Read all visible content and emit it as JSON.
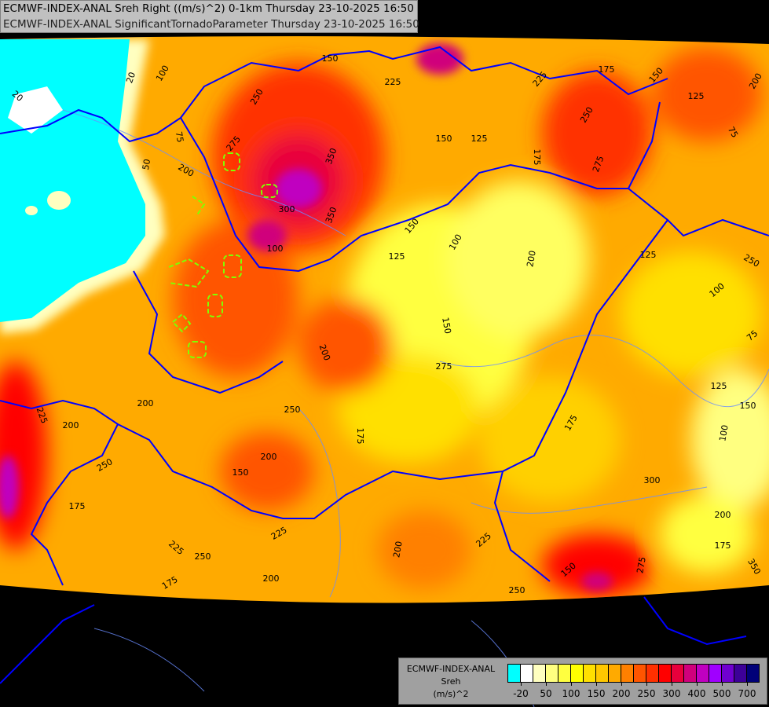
{
  "header": {
    "line1": "ECMWF-INDEX-ANAL Sreh Right ((m/s)^2) 0-1km Thursday 23-10-2025 16:50",
    "line2": "ECMWF-INDEX-ANAL SignificantTornadoParameter Thursday 23-10-2025 16:50"
  },
  "legend": {
    "model": "ECMWF-INDEX-ANAL",
    "variable": "Sreh",
    "unit": "(m/s)^2",
    "colors": [
      "#00ffff",
      "#ffffff",
      "#ffffc0",
      "#ffff80",
      "#ffff40",
      "#ffff00",
      "#ffe000",
      "#ffc800",
      "#ffaa00",
      "#ff8000",
      "#ff5500",
      "#ff3000",
      "#ff0000",
      "#e8003c",
      "#d0007c",
      "#c000c0",
      "#a000ff",
      "#7000d0",
      "#3c0098",
      "#000078"
    ],
    "ticks": [
      "-20",
      "50",
      "100",
      "150",
      "200",
      "250",
      "300",
      "400",
      "500",
      "700"
    ]
  },
  "map": {
    "ocean_color": "#000000",
    "border_color": "#0000ff",
    "river_color": "#6a8cff",
    "stp_contour_color": "#80ff00",
    "contour_labels": [
      "20",
      "100",
      "20",
      "50",
      "75",
      "200",
      "250",
      "275",
      "350",
      "300",
      "350",
      "150",
      "225",
      "100",
      "150",
      "125",
      "175",
      "225",
      "250",
      "275",
      "175",
      "150",
      "125",
      "150",
      "200",
      "125",
      "100",
      "200",
      "150",
      "125",
      "100",
      "75",
      "75",
      "125",
      "150",
      "100",
      "200",
      "175",
      "200",
      "275",
      "250",
      "225",
      "250",
      "150",
      "200",
      "175",
      "200",
      "250",
      "175",
      "225",
      "250",
      "175",
      "225",
      "200",
      "200",
      "225",
      "250",
      "150",
      "275",
      "300",
      "200",
      "175",
      "350"
    ]
  }
}
